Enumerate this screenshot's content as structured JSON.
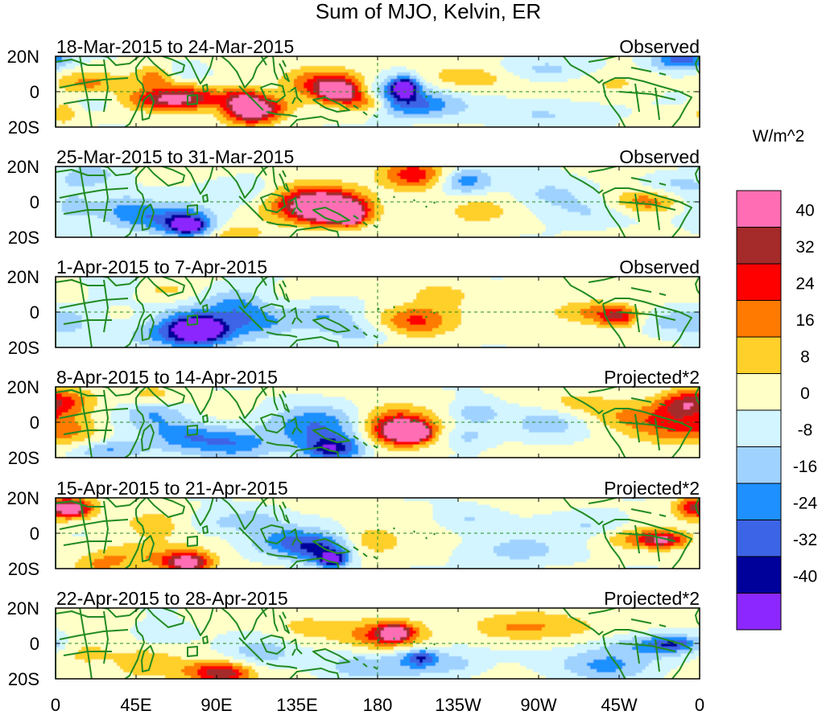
{
  "chart_data": {
    "type": "heatmap",
    "title": "Sum of MJO, Kelvin, ER",
    "colorbar_label": "W/m^2",
    "colorbar_levels": [
      "40",
      "32",
      "24",
      "16",
      "8",
      "0",
      "-8",
      "-16",
      "-24",
      "-32",
      "-40"
    ],
    "colorbar_colors": [
      "#ff6eb4",
      "#a52a2a",
      "#ff0000",
      "#ff7a00",
      "#ffd02a",
      "#ffffc8",
      "#d2f5ff",
      "#a0d2ff",
      "#1e90ff",
      "#3c64e6",
      "#00009b",
      "#8c28ff"
    ],
    "x_ticks": [
      "0",
      "45E",
      "90E",
      "135E",
      "180",
      "135W",
      "90W",
      "45W",
      "0"
    ],
    "y_ticks": [
      "20N",
      "0",
      "20S"
    ],
    "lon_range": [
      0,
      360
    ],
    "lat_range": [
      -20,
      20
    ],
    "panels": [
      {
        "period": "18-Mar-2015 to 24-Mar-2015",
        "label": "Observed",
        "blobs": [
          [
            5,
            -12,
            6,
            5,
            12
          ],
          [
            18,
            5,
            12,
            5,
            16
          ],
          [
            20,
            -5,
            10,
            4,
            -10
          ],
          [
            55,
            8,
            8,
            5,
            18
          ],
          [
            60,
            -5,
            15,
            4,
            24
          ],
          [
            75,
            -3,
            15,
            5,
            28
          ],
          [
            105,
            -5,
            8,
            5,
            34
          ],
          [
            110,
            -12,
            10,
            5,
            36
          ],
          [
            120,
            -8,
            10,
            4,
            16
          ],
          [
            150,
            5,
            15,
            6,
            26
          ],
          [
            158,
            0,
            8,
            4,
            42
          ],
          [
            175,
            -6,
            10,
            4,
            22
          ],
          [
            190,
            -2,
            12,
            7,
            -28
          ],
          [
            195,
            3,
            5,
            4,
            -38
          ],
          [
            208,
            -8,
            15,
            5,
            -18
          ],
          [
            232,
            8,
            20,
            5,
            14
          ],
          [
            272,
            -12,
            25,
            6,
            -10
          ],
          [
            272,
            12,
            20,
            5,
            -12
          ],
          [
            315,
            5,
            15,
            5,
            8
          ],
          [
            350,
            18,
            12,
            4,
            -32
          ],
          [
            72,
            12,
            8,
            4,
            -10
          ]
        ]
      },
      {
        "period": "25-Mar-2015 to 31-Mar-2015",
        "label": "Observed",
        "blobs": [
          [
            8,
            -2,
            15,
            8,
            -14
          ],
          [
            40,
            -5,
            10,
            6,
            -18
          ],
          [
            65,
            -10,
            15,
            6,
            -26
          ],
          [
            75,
            -14,
            8,
            4,
            -40
          ],
          [
            110,
            5,
            15,
            6,
            -12
          ],
          [
            140,
            0,
            20,
            8,
            22
          ],
          [
            150,
            -2,
            15,
            6,
            32
          ],
          [
            158,
            -6,
            12,
            5,
            36
          ],
          [
            165,
            -8,
            4,
            3,
            42
          ],
          [
            200,
            15,
            12,
            6,
            28
          ],
          [
            230,
            12,
            10,
            5,
            -22
          ],
          [
            235,
            -5,
            15,
            6,
            10
          ],
          [
            275,
            5,
            15,
            6,
            -12
          ],
          [
            300,
            -5,
            20,
            6,
            -10
          ],
          [
            330,
            0,
            15,
            5,
            24
          ],
          [
            345,
            10,
            12,
            5,
            -10
          ],
          [
            20,
            15,
            12,
            5,
            -12
          ],
          [
            100,
            -18,
            15,
            4,
            10
          ]
        ]
      },
      {
        "period": "1-Apr-2015 to 7-Apr-2015",
        "label": "Observed",
        "blobs": [
          [
            5,
            -5,
            12,
            6,
            -12
          ],
          [
            30,
            15,
            15,
            5,
            -10
          ],
          [
            50,
            -5,
            15,
            6,
            12
          ],
          [
            70,
            -10,
            22,
            8,
            -32
          ],
          [
            80,
            -10,
            10,
            5,
            -42
          ],
          [
            100,
            5,
            12,
            6,
            -18
          ],
          [
            115,
            -5,
            15,
            6,
            -20
          ],
          [
            150,
            -2,
            12,
            5,
            -16
          ],
          [
            170,
            -12,
            15,
            5,
            -12
          ],
          [
            200,
            -5,
            15,
            6,
            26
          ],
          [
            215,
            10,
            12,
            5,
            10
          ],
          [
            300,
            0,
            15,
            5,
            18
          ],
          [
            315,
            -3,
            8,
            4,
            28
          ],
          [
            345,
            -5,
            15,
            5,
            -12
          ],
          [
            8,
            14,
            10,
            4,
            8
          ],
          [
            60,
            12,
            12,
            4,
            10
          ]
        ]
      },
      {
        "period": "8-Apr-2015 to 14-Apr-2015",
        "label": "Projected*2",
        "blobs": [
          [
            5,
            12,
            12,
            5,
            20
          ],
          [
            10,
            -5,
            12,
            8,
            14
          ],
          [
            28,
            -16,
            15,
            4,
            -20
          ],
          [
            55,
            5,
            12,
            6,
            -16
          ],
          [
            72,
            -8,
            15,
            6,
            -22
          ],
          [
            100,
            -12,
            15,
            6,
            -22
          ],
          [
            145,
            -2,
            20,
            8,
            -24
          ],
          [
            155,
            -15,
            12,
            5,
            -38
          ],
          [
            188,
            -2,
            15,
            8,
            26
          ],
          [
            195,
            -5,
            10,
            5,
            36
          ],
          [
            200,
            -6,
            6,
            3,
            42
          ],
          [
            235,
            5,
            10,
            5,
            -16
          ],
          [
            230,
            -8,
            10,
            4,
            -12
          ],
          [
            275,
            0,
            15,
            6,
            -14
          ],
          [
            290,
            10,
            15,
            5,
            10
          ],
          [
            325,
            3,
            20,
            6,
            16
          ],
          [
            345,
            -5,
            15,
            6,
            14
          ],
          [
            350,
            10,
            10,
            6,
            24
          ],
          [
            55,
            15,
            10,
            4,
            12
          ]
        ]
      },
      {
        "period": "15-Apr-2015 to 21-Apr-2015",
        "label": "Projected*2",
        "blobs": [
          [
            5,
            14,
            12,
            5,
            22
          ],
          [
            10,
            14,
            6,
            3,
            34
          ],
          [
            40,
            -12,
            15,
            5,
            12
          ],
          [
            55,
            5,
            15,
            6,
            10
          ],
          [
            70,
            -16,
            12,
            5,
            22
          ],
          [
            75,
            -17,
            8,
            4,
            30
          ],
          [
            85,
            5,
            12,
            5,
            -10
          ],
          [
            110,
            8,
            12,
            5,
            -12
          ],
          [
            130,
            -5,
            15,
            6,
            -22
          ],
          [
            150,
            -10,
            12,
            6,
            -28
          ],
          [
            155,
            -15,
            5,
            3,
            -38
          ],
          [
            175,
            -5,
            12,
            6,
            12
          ],
          [
            230,
            8,
            12,
            5,
            -10
          ],
          [
            260,
            -10,
            20,
            6,
            -12
          ],
          [
            300,
            5,
            15,
            5,
            -10
          ],
          [
            330,
            -3,
            15,
            4,
            18
          ],
          [
            340,
            -4,
            8,
            3,
            26
          ],
          [
            355,
            15,
            6,
            4,
            16
          ],
          [
            25,
            -18,
            10,
            4,
            12
          ]
        ]
      },
      {
        "period": "22-Apr-2015 to 28-Apr-2015",
        "label": "Projected*2",
        "blobs": [
          [
            15,
            -5,
            12,
            6,
            10
          ],
          [
            50,
            -12,
            12,
            6,
            12
          ],
          [
            60,
            5,
            12,
            5,
            -10
          ],
          [
            85,
            -16,
            15,
            5,
            18
          ],
          [
            95,
            -17,
            10,
            4,
            24
          ],
          [
            115,
            -5,
            15,
            6,
            -12
          ],
          [
            140,
            8,
            15,
            6,
            10
          ],
          [
            170,
            -12,
            15,
            6,
            -14
          ],
          [
            185,
            5,
            15,
            6,
            26
          ],
          [
            190,
            6,
            6,
            3,
            36
          ],
          [
            200,
            -10,
            12,
            6,
            -16
          ],
          [
            205,
            -8,
            6,
            3,
            -22
          ],
          [
            225,
            -12,
            10,
            5,
            -10
          ],
          [
            250,
            8,
            15,
            5,
            10
          ],
          [
            275,
            10,
            20,
            6,
            12
          ],
          [
            300,
            -10,
            20,
            6,
            -10
          ],
          [
            330,
            -2,
            20,
            5,
            -16
          ],
          [
            345,
            0,
            10,
            3,
            -24
          ],
          [
            310,
            -14,
            15,
            5,
            -12
          ]
        ]
      }
    ]
  }
}
